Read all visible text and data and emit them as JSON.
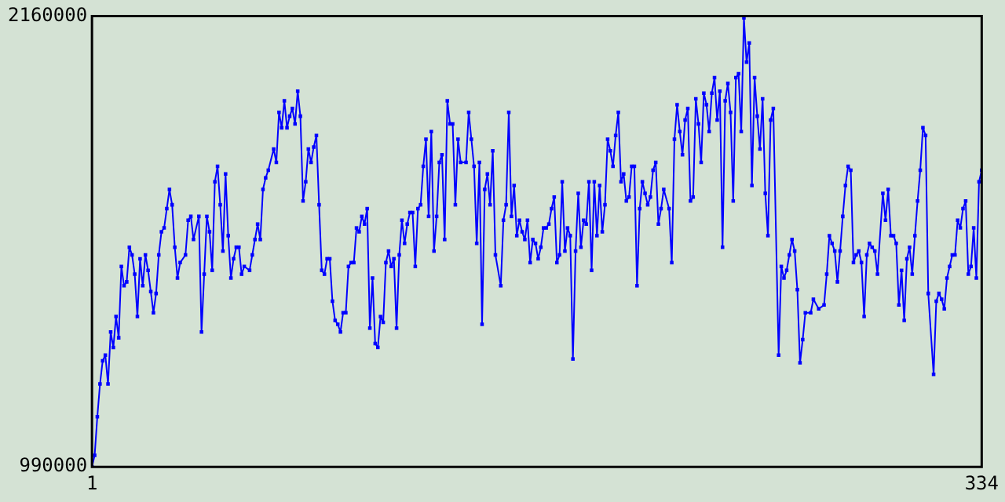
{
  "chart_data": {
    "type": "line",
    "marker": "square",
    "legend": false,
    "color": "#0000ff",
    "xlim": [
      1,
      334
    ],
    "ylim": [
      990000,
      2160000
    ],
    "xticks": [
      1,
      334
    ],
    "yticks": [
      990000,
      2160000
    ],
    "x": [
      1,
      2,
      3,
      4,
      5,
      6,
      7,
      8,
      9,
      10,
      11,
      12,
      13,
      14,
      15,
      16,
      17,
      18,
      19,
      20,
      21,
      22,
      23,
      24,
      25,
      26,
      27,
      28,
      29,
      30,
      31,
      32,
      33,
      34,
      36,
      37,
      38,
      39,
      41,
      42,
      43,
      44,
      45,
      46,
      47,
      48,
      49,
      50,
      51,
      52,
      53,
      54,
      55,
      56,
      57,
      58,
      60,
      61,
      62,
      63,
      64,
      65,
      66,
      67,
      69,
      70,
      71,
      72,
      73,
      74,
      75,
      76,
      77,
      78,
      79,
      80,
      81,
      82,
      83,
      84,
      85,
      86,
      87,
      88,
      89,
      90,
      91,
      92,
      93,
      94,
      95,
      96,
      97,
      98,
      99,
      100,
      101,
      102,
      103,
      104,
      105,
      106,
      107,
      108,
      109,
      110,
      111,
      112,
      113,
      114,
      115,
      116,
      117,
      118,
      119,
      120,
      121,
      122,
      123,
      124,
      125,
      126,
      127,
      128,
      129,
      130,
      131,
      132,
      133,
      134,
      135,
      136,
      137,
      138,
      139,
      141,
      142,
      143,
      144,
      145,
      146,
      147,
      148,
      149,
      150,
      151,
      152,
      154,
      155,
      156,
      157,
      158,
      159,
      160,
      161,
      162,
      163,
      164,
      165,
      166,
      167,
      168,
      169,
      170,
      171,
      172,
      173,
      174,
      175,
      176,
      177,
      178,
      179,
      180,
      181,
      182,
      183,
      184,
      185,
      186,
      187,
      188,
      189,
      190,
      191,
      192,
      193,
      194,
      195,
      196,
      197,
      198,
      199,
      200,
      201,
      202,
      203,
      204,
      205,
      206,
      207,
      208,
      209,
      210,
      211,
      212,
      213,
      214,
      215,
      217,
      218,
      219,
      220,
      221,
      222,
      223,
      224,
      225,
      226,
      227,
      228,
      229,
      230,
      231,
      232,
      233,
      234,
      235,
      236,
      237,
      238,
      239,
      240,
      241,
      242,
      243,
      244,
      245,
      246,
      247,
      248,
      249,
      250,
      251,
      252,
      253,
      254,
      255,
      256,
      258,
      259,
      260,
      261,
      262,
      263,
      264,
      265,
      266,
      267,
      268,
      270,
      271,
      273,
      275,
      276,
      277,
      278,
      279,
      280,
      281,
      282,
      283,
      284,
      285,
      286,
      287,
      288,
      289,
      290,
      291,
      292,
      293,
      294,
      295,
      297,
      298,
      299,
      300,
      301,
      302,
      303,
      304,
      305,
      306,
      307,
      308,
      309,
      310,
      311,
      312,
      313,
      314,
      316,
      317,
      318,
      319,
      320,
      321,
      322,
      323,
      324,
      325,
      326,
      327,
      328,
      329,
      330,
      331,
      332,
      333,
      334
    ],
    "values": [
      990000,
      1020000,
      1120000,
      1205000,
      1265000,
      1280000,
      1205000,
      1340000,
      1300000,
      1380000,
      1325000,
      1510000,
      1460000,
      1470000,
      1560000,
      1540000,
      1490000,
      1380000,
      1530000,
      1460000,
      1540000,
      1500000,
      1445000,
      1390000,
      1440000,
      1540000,
      1600000,
      1610000,
      1660000,
      1710000,
      1670000,
      1560000,
      1480000,
      1520000,
      1540000,
      1630000,
      1640000,
      1580000,
      1640000,
      1340000,
      1490000,
      1640000,
      1600000,
      1500000,
      1730000,
      1770000,
      1670000,
      1550000,
      1750000,
      1590000,
      1480000,
      1530000,
      1560000,
      1560000,
      1490000,
      1510000,
      1500000,
      1540000,
      1580000,
      1620000,
      1580000,
      1710000,
      1740000,
      1760000,
      1815000,
      1780000,
      1910000,
      1870000,
      1940000,
      1870000,
      1900000,
      1920000,
      1880000,
      1965000,
      1900000,
      1680000,
      1730000,
      1815000,
      1780000,
      1820000,
      1850000,
      1670000,
      1500000,
      1490000,
      1530000,
      1530000,
      1420000,
      1370000,
      1360000,
      1340000,
      1390000,
      1390000,
      1510000,
      1520000,
      1520000,
      1610000,
      1600000,
      1640000,
      1620000,
      1660000,
      1350000,
      1480000,
      1310000,
      1300000,
      1380000,
      1365000,
      1520000,
      1550000,
      1510000,
      1530000,
      1350000,
      1540000,
      1630000,
      1570000,
      1620000,
      1650000,
      1650000,
      1510000,
      1660000,
      1670000,
      1770000,
      1840000,
      1640000,
      1860000,
      1550000,
      1640000,
      1780000,
      1800000,
      1580000,
      1940000,
      1880000,
      1880000,
      1670000,
      1840000,
      1780000,
      1780000,
      1910000,
      1840000,
      1770000,
      1570000,
      1780000,
      1360000,
      1710000,
      1750000,
      1670000,
      1810000,
      1540000,
      1460000,
      1630000,
      1670000,
      1910000,
      1640000,
      1720000,
      1590000,
      1630000,
      1600000,
      1580000,
      1630000,
      1520000,
      1580000,
      1570000,
      1530000,
      1560000,
      1610000,
      1610000,
      1620000,
      1660000,
      1690000,
      1520000,
      1540000,
      1730000,
      1550000,
      1610000,
      1590000,
      1270000,
      1550000,
      1700000,
      1560000,
      1630000,
      1620000,
      1730000,
      1500000,
      1730000,
      1590000,
      1720000,
      1600000,
      1670000,
      1840000,
      1810000,
      1770000,
      1850000,
      1910000,
      1730000,
      1750000,
      1680000,
      1690000,
      1770000,
      1770000,
      1460000,
      1660000,
      1730000,
      1700000,
      1670000,
      1690000,
      1760000,
      1780000,
      1620000,
      1660000,
      1710000,
      1660000,
      1520000,
      1840000,
      1930000,
      1860000,
      1800000,
      1890000,
      1920000,
      1680000,
      1690000,
      1945000,
      1880000,
      1780000,
      1960000,
      1930000,
      1860000,
      1960000,
      2000000,
      1890000,
      1965000,
      1560000,
      1940000,
      1985000,
      1910000,
      1680000,
      2000000,
      2010000,
      1860000,
      2155000,
      2040000,
      2090000,
      1720000,
      2000000,
      1900000,
      1815000,
      1945000,
      1700000,
      1590000,
      1890000,
      1920000,
      1280000,
      1510000,
      1480000,
      1500000,
      1540000,
      1580000,
      1550000,
      1450000,
      1260000,
      1320000,
      1390000,
      1390000,
      1425000,
      1400000,
      1410000,
      1490000,
      1590000,
      1570000,
      1550000,
      1470000,
      1550000,
      1640000,
      1720000,
      1770000,
      1760000,
      1520000,
      1540000,
      1550000,
      1520000,
      1380000,
      1540000,
      1570000,
      1560000,
      1550000,
      1490000,
      1700000,
      1630000,
      1710000,
      1590000,
      1590000,
      1570000,
      1410000,
      1500000,
      1370000,
      1530000,
      1560000,
      1490000,
      1590000,
      1680000,
      1760000,
      1870000,
      1850000,
      1440000,
      1230000,
      1420000,
      1440000,
      1425000,
      1400000,
      1480000,
      1510000,
      1540000,
      1540000,
      1630000,
      1610000,
      1660000,
      1680000,
      1490000,
      1510000,
      1610000,
      1480000,
      1730000,
      1760000
    ]
  }
}
